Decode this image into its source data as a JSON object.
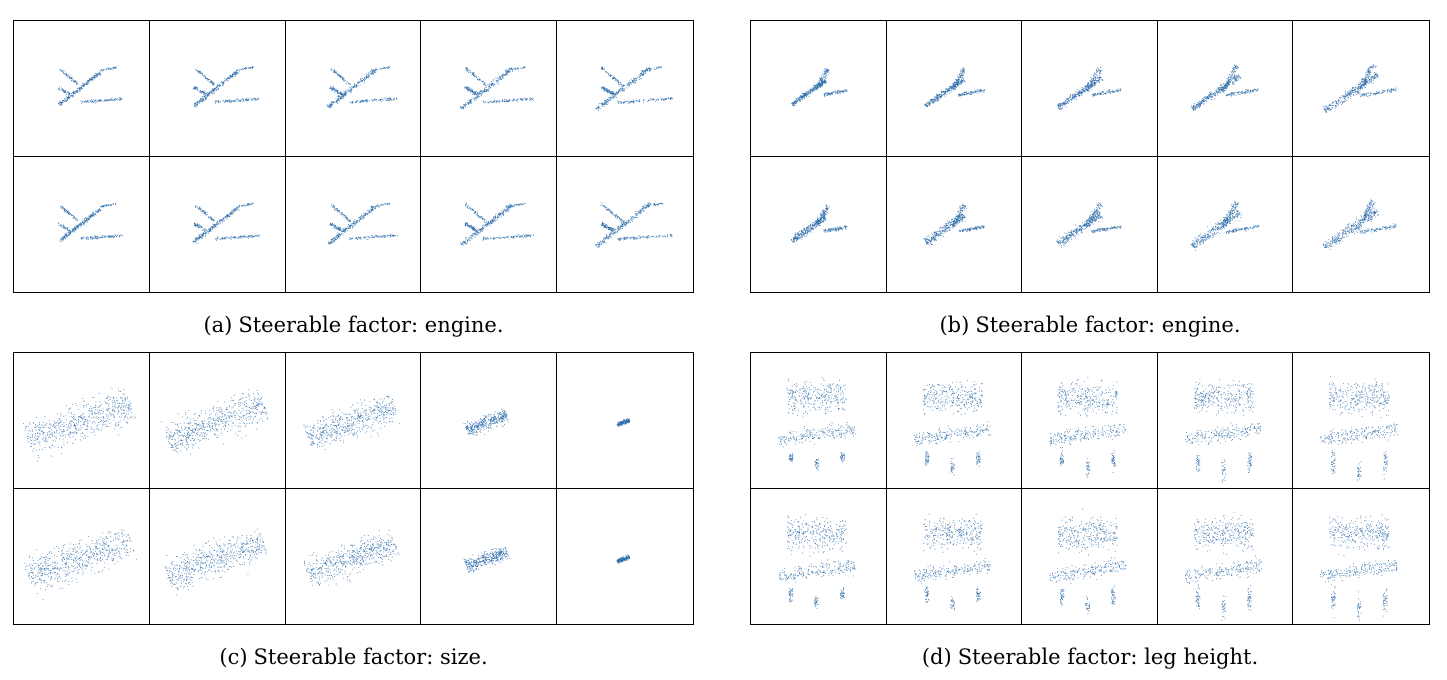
{
  "figure": {
    "point_color": "#2f6eab",
    "panels": [
      {
        "label": "(a)",
        "caption": "Steerable factor: engine.",
        "shape": "airplane",
        "rows": 2,
        "cols": 5,
        "scale": [
          1.0,
          1.0,
          1.0,
          1.0,
          1.0
        ]
      },
      {
        "label": "(b)",
        "caption": "Steerable factor: engine.",
        "shape": "jet",
        "rows": 2,
        "cols": 5,
        "scale": [
          1.0,
          1.0,
          1.0,
          1.0,
          1.0
        ]
      },
      {
        "label": "(c)",
        "caption": "Steerable factor: size.",
        "shape": "car",
        "rows": 2,
        "cols": 5,
        "scale": [
          1.0,
          0.95,
          0.85,
          0.4,
          0.12
        ]
      },
      {
        "label": "(d)",
        "caption": "Steerable factor: leg height.",
        "shape": "chair",
        "rows": 2,
        "cols": 5,
        "scale": [
          1.0,
          1.0,
          1.0,
          1.0,
          1.0
        ]
      }
    ]
  }
}
